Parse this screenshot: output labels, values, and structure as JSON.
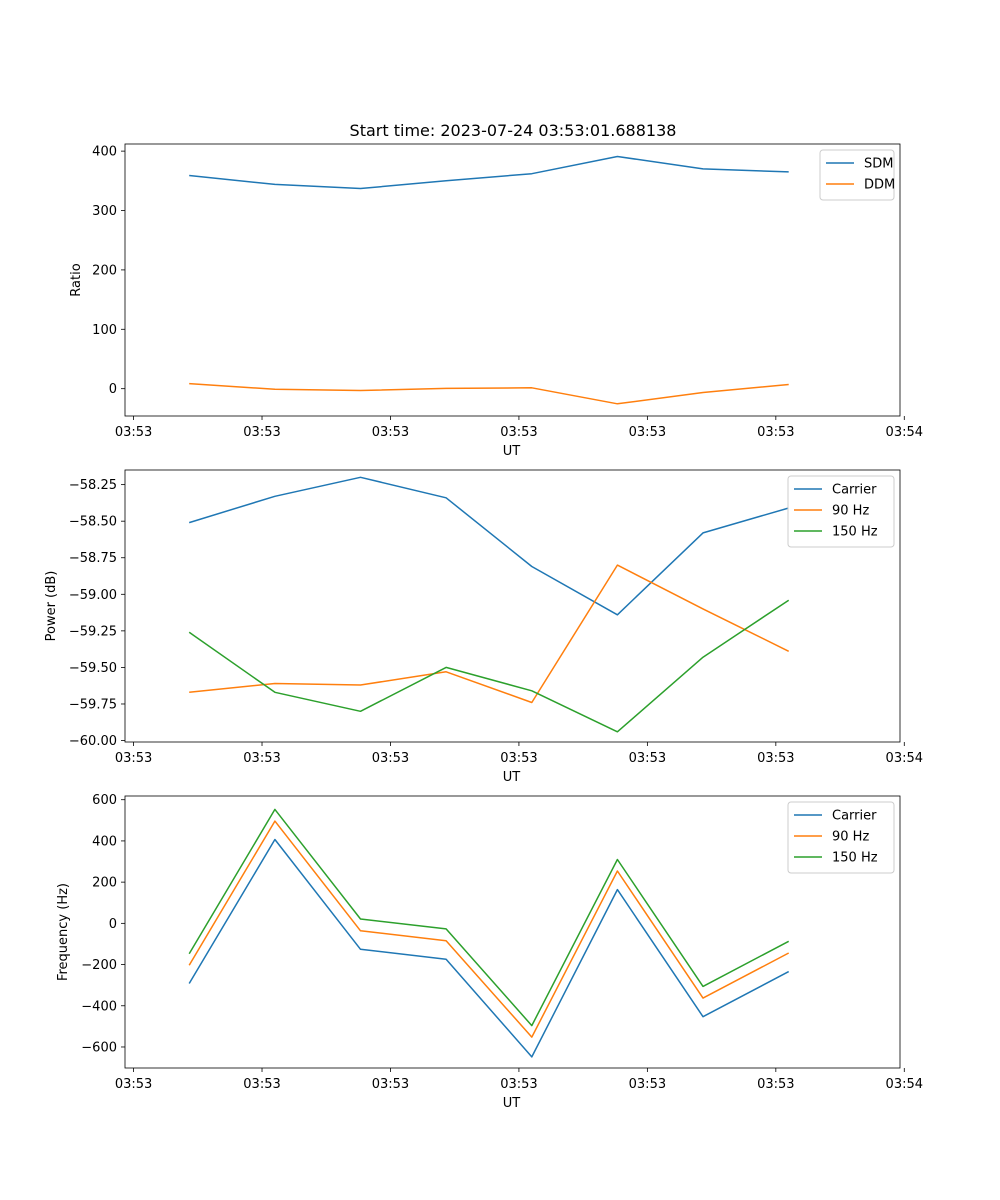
{
  "figure_title": "Start time: 2023-07-24 03:53:01.688138",
  "colors": {
    "blue": "#1f77b4",
    "orange": "#ff7f0e",
    "green": "#2ca02c"
  },
  "chart_data": [
    {
      "type": "line",
      "title": "Start time: 2023-07-24 03:53:01.688138",
      "xlabel": "UT",
      "ylabel": "Ratio",
      "x": [
        1,
        2,
        3,
        4,
        5,
        6,
        7,
        8
      ],
      "xlim": [
        0.25,
        9.3
      ],
      "xticks": [
        0.35,
        1.85,
        3.35,
        4.85,
        6.35,
        7.85,
        9.35
      ],
      "xtick_labels": [
        "03:53",
        "03:53",
        "03:53",
        "03:53",
        "03:53",
        "03:53",
        "03:54"
      ],
      "ylim": [
        -46,
        412
      ],
      "yticks": [
        0,
        100,
        200,
        300,
        400
      ],
      "ytick_labels": [
        "0",
        "100",
        "200",
        "300",
        "400"
      ],
      "legend_position": "top-right",
      "series": [
        {
          "name": "SDM",
          "color": "#1f77b4",
          "values": [
            359,
            344,
            337,
            350,
            362,
            391,
            370,
            365
          ]
        },
        {
          "name": "DDM",
          "color": "#ff7f0e",
          "values": [
            8.5,
            -1,
            -3,
            0.5,
            1.5,
            -25.5,
            -6.5,
            7
          ]
        }
      ]
    },
    {
      "type": "line",
      "title": "",
      "xlabel": "UT",
      "ylabel": "Power (dB)",
      "x": [
        1,
        2,
        3,
        4,
        5,
        6,
        7,
        8
      ],
      "xlim": [
        0.25,
        9.3
      ],
      "xticks": [
        0.35,
        1.85,
        3.35,
        4.85,
        6.35,
        7.85,
        9.35
      ],
      "xtick_labels": [
        "03:53",
        "03:53",
        "03:53",
        "03:53",
        "03:53",
        "03:53",
        "03:54"
      ],
      "ylim": [
        -60.01,
        -58.15
      ],
      "yticks": [
        -58.25,
        -58.5,
        -58.75,
        -59.0,
        -59.25,
        -59.5,
        -59.75,
        -60.0
      ],
      "ytick_labels": [
        "−58.25",
        "−58.50",
        "−58.75",
        "−59.00",
        "−59.25",
        "−59.50",
        "−59.75",
        "−60.00"
      ],
      "legend_position": "top-right",
      "series": [
        {
          "name": "Carrier",
          "color": "#1f77b4",
          "values": [
            -58.51,
            -58.33,
            -58.2,
            -58.34,
            -58.81,
            -59.14,
            -58.58,
            -58.41
          ]
        },
        {
          "name": "90 Hz",
          "color": "#ff7f0e",
          "values": [
            -59.67,
            -59.61,
            -59.62,
            -59.53,
            -59.74,
            -58.8,
            -59.1,
            -59.39
          ]
        },
        {
          "name": "150 Hz",
          "color": "#2ca02c",
          "values": [
            -59.26,
            -59.67,
            -59.8,
            -59.5,
            -59.66,
            -59.94,
            -59.43,
            -59.04
          ]
        }
      ]
    },
    {
      "type": "line",
      "title": "",
      "xlabel": "UT",
      "ylabel": "Frequency (Hz)",
      "x": [
        1,
        2,
        3,
        4,
        5,
        6,
        7,
        8
      ],
      "xlim": [
        0.25,
        9.3
      ],
      "xticks": [
        0.35,
        1.85,
        3.35,
        4.85,
        6.35,
        7.85,
        9.35
      ],
      "xtick_labels": [
        "03:53",
        "03:53",
        "03:53",
        "03:53",
        "03:53",
        "03:53",
        "03:54"
      ],
      "ylim": [
        -702,
        618
      ],
      "yticks": [
        600,
        400,
        200,
        0,
        -200,
        -400,
        -600
      ],
      "ytick_labels": [
        "600",
        "400",
        "200",
        "0",
        "−200",
        "−400",
        "−600"
      ],
      "legend_position": "top-right",
      "series": [
        {
          "name": "Carrier",
          "color": "#1f77b4",
          "values": [
            -292,
            407,
            -126,
            -174,
            -648,
            164,
            -453,
            -234
          ]
        },
        {
          "name": "90 Hz",
          "color": "#ff7f0e",
          "values": [
            -203,
            496,
            -36,
            -84,
            -552,
            254,
            -363,
            -144
          ]
        },
        {
          "name": "150 Hz",
          "color": "#2ca02c",
          "values": [
            -148,
            553,
            21,
            -27,
            -496,
            310,
            -306,
            -87
          ]
        }
      ]
    }
  ]
}
